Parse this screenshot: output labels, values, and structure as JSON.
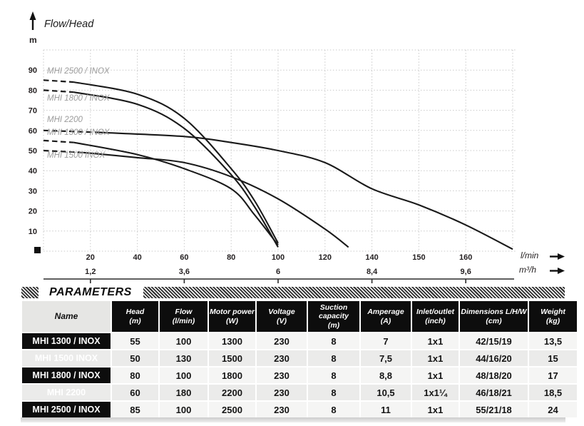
{
  "chart_data": {
    "type": "line",
    "title": "Flow/Head",
    "y_unit": "m",
    "x_unit": "l/min",
    "x_unit_secondary": "m³/h",
    "ylim": [
      0,
      100
    ],
    "grid": "dotted",
    "legend_position": "inline-labels-left",
    "y_ticks": [
      10,
      20,
      30,
      40,
      50,
      60,
      70,
      80,
      90
    ],
    "x_tick_labels": [
      "20",
      "40",
      "60",
      "80",
      "100",
      "120",
      "140",
      "150",
      "160"
    ],
    "x_secondary_ticks": [
      {
        "label": "1,2",
        "tick_index": 1
      },
      {
        "label": "3,6",
        "tick_index": 3
      },
      {
        "label": "6",
        "tick_index": 5
      },
      {
        "label": "8,4",
        "tick_index": 7
      },
      {
        "label": "9,6",
        "tick_index": 9
      }
    ],
    "series": [
      {
        "name": "MHI 2500 / INOX",
        "dash_until": 13,
        "points": [
          [
            0,
            85
          ],
          [
            13,
            84
          ],
          [
            40,
            78
          ],
          [
            60,
            66
          ],
          [
            80,
            41
          ],
          [
            90,
            25
          ],
          [
            100,
            4
          ]
        ],
        "label_xy": [
          66,
          103
        ]
      },
      {
        "name": "MHI 1800 / INOX",
        "dash_until": 13,
        "points": [
          [
            0,
            80
          ],
          [
            13,
            79
          ],
          [
            40,
            73
          ],
          [
            60,
            61
          ],
          [
            80,
            38
          ],
          [
            90,
            22
          ],
          [
            100,
            2
          ]
        ],
        "label_xy": [
          66,
          141
        ]
      },
      {
        "name": "MHI 2200",
        "dash_until": 24,
        "points": [
          [
            0,
            60
          ],
          [
            24,
            59
          ],
          [
            60,
            57
          ],
          [
            80,
            54
          ],
          [
            100,
            50
          ],
          [
            120,
            44
          ],
          [
            140,
            31
          ],
          [
            150,
            23
          ],
          [
            160,
            13
          ],
          [
            170,
            1
          ]
        ],
        "label_xy": [
          66,
          171
        ]
      },
      {
        "name": "MHI 1300 / INOX",
        "dash_until": 13,
        "points": [
          [
            0,
            55
          ],
          [
            13,
            54
          ],
          [
            40,
            48
          ],
          [
            60,
            41
          ],
          [
            80,
            31
          ],
          [
            90,
            18
          ],
          [
            100,
            3
          ]
        ],
        "label_xy": [
          66,
          189
        ]
      },
      {
        "name": "MHI 1500 INOX",
        "dash_until": 17,
        "points": [
          [
            0,
            50
          ],
          [
            17,
            49
          ],
          [
            40,
            46.5
          ],
          [
            60,
            44
          ],
          [
            80,
            37
          ],
          [
            100,
            26
          ],
          [
            120,
            11
          ],
          [
            130,
            2
          ]
        ],
        "label_xy": [
          66,
          221
        ]
      }
    ]
  },
  "parameters_table": {
    "title": "PARAMETERS",
    "columns": [
      {
        "label": "Name",
        "unit": ""
      },
      {
        "label": "Head",
        "unit": "(m)"
      },
      {
        "label": "Flow",
        "unit": "(l/min)"
      },
      {
        "label": "Motor power",
        "unit": "(W)"
      },
      {
        "label": "Voltage",
        "unit": "(V)"
      },
      {
        "label": "Suction capacity",
        "unit": "(m)"
      },
      {
        "label": "Amperage",
        "unit": "(A)"
      },
      {
        "label": "Inlet/outlet",
        "unit": "(inch)"
      },
      {
        "label": "Dimensions L/H/W",
        "unit": "(cm)"
      },
      {
        "label": "Weight",
        "unit": "(kg)"
      }
    ],
    "rows": [
      [
        "MHI 1300 / INOX",
        "55",
        "100",
        "1300",
        "230",
        "8",
        "7",
        "1x1",
        "42/15/19",
        "13,5"
      ],
      [
        "MHI 1500 INOX",
        "50",
        "130",
        "1500",
        "230",
        "8",
        "7,5",
        "1x1",
        "44/16/20",
        "15"
      ],
      [
        "MHI 1800 / INOX",
        "80",
        "100",
        "1800",
        "230",
        "8",
        "8,8",
        "1x1",
        "48/18/20",
        "17"
      ],
      [
        "MHI 2200",
        "60",
        "180",
        "2200",
        "230",
        "8",
        "10,5",
        "1x1¼",
        "46/18/21",
        "18,5"
      ],
      [
        "MHI 2500 / INOX",
        "85",
        "100",
        "2500",
        "230",
        "8",
        "11",
        "1x1",
        "55/21/18",
        "24"
      ]
    ]
  },
  "colors": {
    "curve": "#1a1a1a",
    "grid": "#c9c9c9",
    "curve_label": "#9b9b9b",
    "axis_text": "#231f20",
    "header_bg": "#0d0d0d",
    "header_text": "#ffffff",
    "row_bg_odd": "#f5f5f4",
    "row_bg_even": "#ebebea",
    "name_header_bg": "#e6e6e4"
  }
}
